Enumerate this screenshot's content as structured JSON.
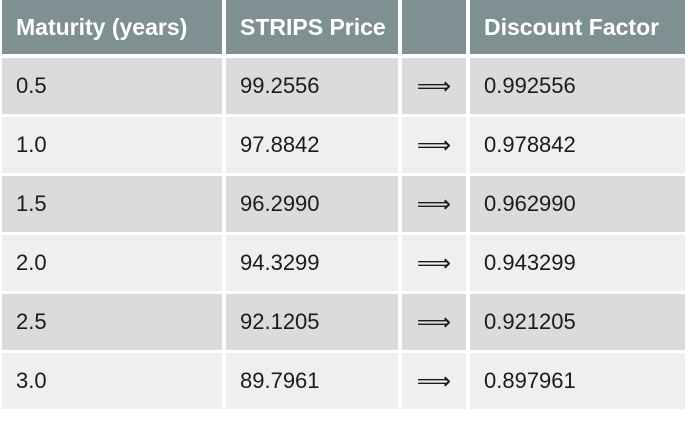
{
  "table": {
    "headers": [
      "Maturity (years)",
      "STRIPS Price",
      "",
      "Discount Factor"
    ],
    "arrow_symbol": "⟹",
    "rows": [
      {
        "maturity": "0.5",
        "price": "99.2556",
        "discount_factor": "0.992556"
      },
      {
        "maturity": "1.0",
        "price": "97.8842",
        "discount_factor": "0.978842"
      },
      {
        "maturity": "1.5",
        "price": "96.2990",
        "discount_factor": "0.962990"
      },
      {
        "maturity": "2.0",
        "price": "94.3299",
        "discount_factor": "0.943299"
      },
      {
        "maturity": "2.5",
        "price": "92.1205",
        "discount_factor": "0.921205"
      },
      {
        "maturity": "3.0",
        "price": "89.7961",
        "discount_factor": "0.897961"
      }
    ]
  },
  "colors": {
    "header_bg": "#7f9093",
    "header_text": "#ffffff",
    "row_odd_bg": "#d9dbdc",
    "row_even_bg": "#eeefef"
  }
}
